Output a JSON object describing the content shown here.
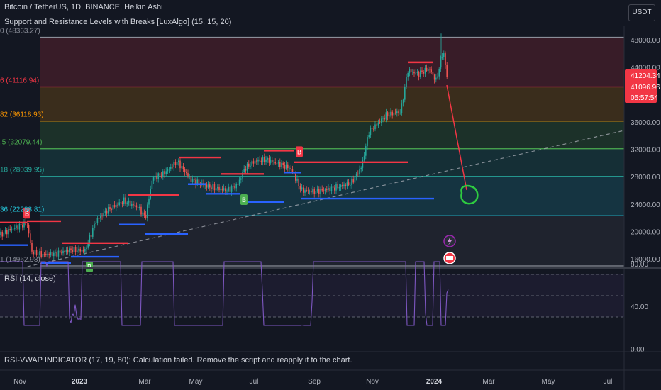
{
  "header": {
    "symbol_line": "Bitcoin / TetherUS, 1D, BINANCE, Heikin Ashi",
    "indicator_line": "Support and Resistance Levels with Breaks [LuxAlgo] (15, 15, 20)",
    "currency_button": "USDT"
  },
  "levels": [
    {
      "label": "0 (48363.27)",
      "value": 48363.27,
      "color": "#8a8e99"
    },
    {
      "label": "6 (41116.94)",
      "value": 41116.94,
      "color": "#f23645"
    },
    {
      "label": "82 (36118.93)",
      "value": 36118.93,
      "color": "#ff9800"
    },
    {
      "label": ".5 (32079.44)",
      "value": 32079.44,
      "color": "#4caf50"
    },
    {
      "label": "18 (28039.95)",
      "value": 28039.95,
      "color": "#26a69a"
    },
    {
      "label": "36 (22288.81)",
      "value": 22288.81,
      "color": "#26c6da"
    },
    {
      "label": "1 (14962.98)",
      "value": 14962.98,
      "color": "#8a8e99"
    }
  ],
  "price_axis": {
    "ticks": [
      "48000.00",
      "44000.00",
      "36000.00",
      "32000.00",
      "28000.00",
      "24000.00",
      "20000.00",
      "16000.00"
    ],
    "last_price": "41204.34",
    "prev_price": "41096.96",
    "countdown": "05:57:54"
  },
  "rsi": {
    "title": "RSI (14, close)",
    "ticks": [
      "80.00",
      "40.00",
      "0.00"
    ]
  },
  "error_message": "RSI-VWAP INDICATOR (17, 19, 80): Calculation failed. Remove the script and reapply it to the chart.",
  "time_axis": [
    "Nov",
    "2023",
    "Mar",
    "May",
    "Jul",
    "Sep",
    "Nov",
    "2024",
    "Mar",
    "May",
    "Jul"
  ],
  "signal_labels": [
    "B",
    "B",
    "B",
    "B"
  ],
  "colors": {
    "background": "#131722",
    "resistance": "#f23645",
    "support": "#2962ff",
    "bull_candle": "#26a69a",
    "bear_candle": "#ef5350",
    "rsi_line": "#7e57c2"
  }
}
